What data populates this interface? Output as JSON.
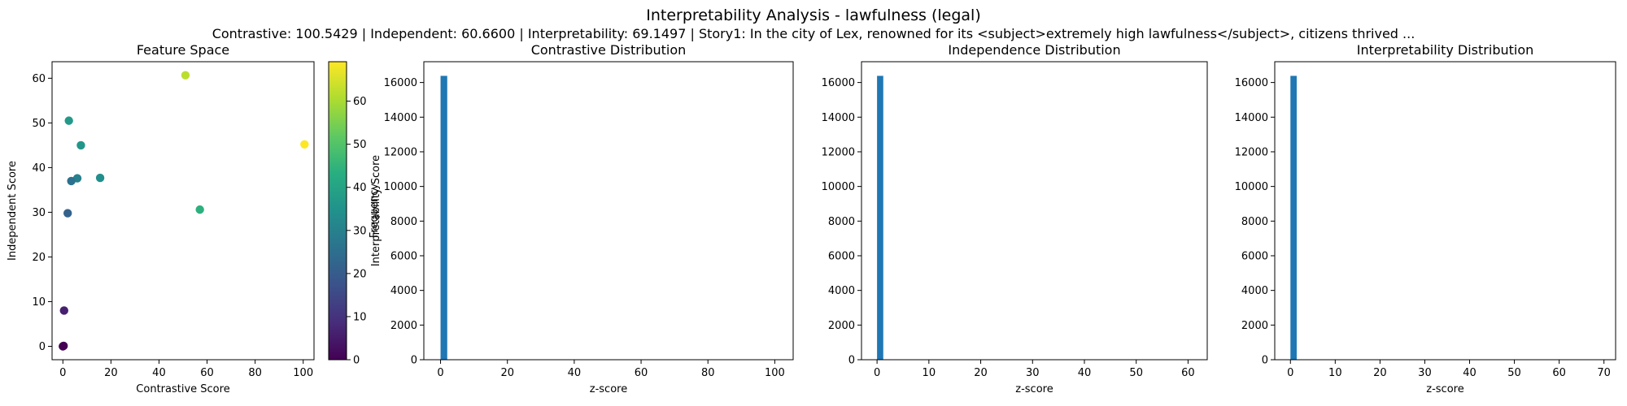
{
  "figure": {
    "title": "Interpretability Analysis - lawfulness (legal)",
    "subtitle": "Contrastive: 100.5429 | Independent: 60.6600 | Interpretability: 69.1497 | Story1: In the city of Lex, renowned for its <subject>extremely high lawfulness</subject>, citizens thrived ..."
  },
  "chart_data": [
    {
      "type": "scatter",
      "title": "Feature Space",
      "xlabel": "Contrastive Score",
      "ylabel": "Independent Score",
      "colorbar_label": "Interpretability Score",
      "colormap": "viridis",
      "xlim": [
        -4.5,
        104.5
      ],
      "ylim": [
        -3.0,
        63.7
      ],
      "xticks": [
        0,
        20,
        40,
        60,
        80,
        100
      ],
      "yticks": [
        0,
        10,
        20,
        30,
        40,
        50,
        60
      ],
      "clim": [
        0,
        69.15
      ],
      "colorbar_ticks": [
        0,
        10,
        20,
        30,
        40,
        50,
        60
      ],
      "points": [
        {
          "x": 100.54,
          "y": 45.2,
          "c": 69.15
        },
        {
          "x": 51.0,
          "y": 60.66,
          "c": 62.0
        },
        {
          "x": 57.0,
          "y": 30.6,
          "c": 44.0
        },
        {
          "x": 15.5,
          "y": 37.7,
          "c": 34.0
        },
        {
          "x": 7.5,
          "y": 45.0,
          "c": 36.0
        },
        {
          "x": 2.5,
          "y": 50.5,
          "c": 37.0
        },
        {
          "x": 6.0,
          "y": 37.6,
          "c": 30.0
        },
        {
          "x": 3.5,
          "y": 37.0,
          "c": 26.0
        },
        {
          "x": 2.0,
          "y": 29.8,
          "c": 22.0
        },
        {
          "x": 0.5,
          "y": 8.0,
          "c": 6.0
        },
        {
          "x": 0.3,
          "y": 0.1,
          "c": 0.5
        },
        {
          "x": 0.0,
          "y": 0.0,
          "c": 0.0
        }
      ]
    },
    {
      "type": "bar",
      "title": "Contrastive Distribution",
      "xlabel": "z-score",
      "ylabel": "Frequency",
      "color": "#1f77b4",
      "xlim": [
        -5.0,
        105.5
      ],
      "ylim": [
        0,
        17200
      ],
      "xticks": [
        0,
        20,
        40,
        60,
        80,
        100
      ],
      "yticks": [
        0,
        2000,
        4000,
        6000,
        8000,
        10000,
        12000,
        14000,
        16000
      ],
      "bins": [
        {
          "x0": 0.0,
          "x1": 2.0,
          "count": 16384
        }
      ]
    },
    {
      "type": "bar",
      "title": "Independence Distribution",
      "xlabel": "z-score",
      "ylabel": "",
      "color": "#1f77b4",
      "xlim": [
        -3.0,
        63.7
      ],
      "ylim": [
        0,
        17200
      ],
      "xticks": [
        0,
        10,
        20,
        30,
        40,
        50,
        60
      ],
      "yticks": [
        0,
        2000,
        4000,
        6000,
        8000,
        10000,
        12000,
        14000,
        16000
      ],
      "bins": [
        {
          "x0": 0.0,
          "x1": 1.2,
          "count": 16384
        }
      ]
    },
    {
      "type": "bar",
      "title": "Interpretability Distribution",
      "xlabel": "z-score",
      "ylabel": "",
      "color": "#1f77b4",
      "xlim": [
        -3.5,
        72.6
      ],
      "ylim": [
        0,
        17200
      ],
      "xticks": [
        0,
        10,
        20,
        30,
        40,
        50,
        60,
        70
      ],
      "yticks": [
        0,
        2000,
        4000,
        6000,
        8000,
        10000,
        12000,
        14000,
        16000
      ],
      "bins": [
        {
          "x0": 0.0,
          "x1": 1.4,
          "count": 16384
        }
      ]
    }
  ]
}
